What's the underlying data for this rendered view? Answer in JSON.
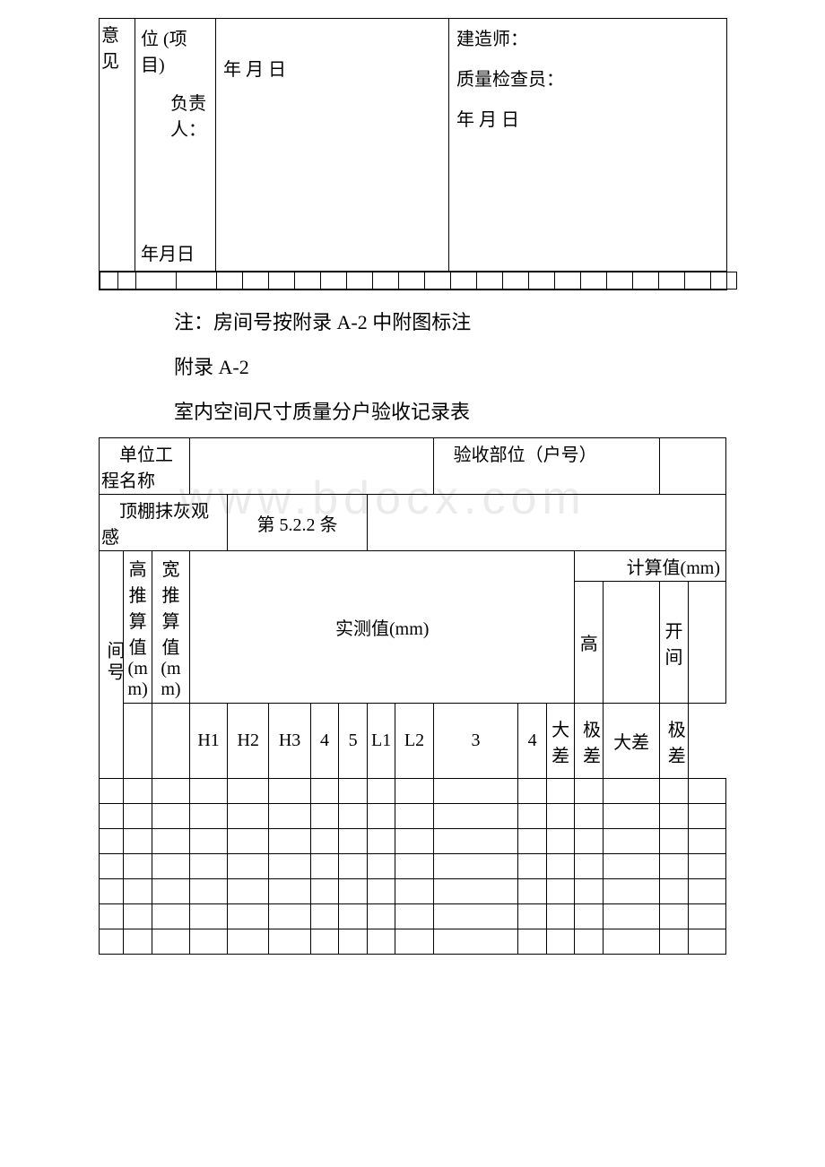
{
  "table1": {
    "col1_top": "意见",
    "col2_top": "位 (项目)",
    "col2_mid": "负责人：",
    "col2_bot": "年月日",
    "col3": "年 月 日",
    "col4a": "建造师：",
    "col4b": "质量检查员：",
    "col4c": "年 月 日"
  },
  "notes": {
    "note1": "注：房间号按附录 A-2 中附图标注",
    "note2": "附录 A-2",
    "title2": "室内空间尺寸质量分户验收记录表"
  },
  "table2": {
    "r1c1": "单位工程名称",
    "r1c3": "验收部位（户号）",
    "r2c1": "顶棚抹灰观感",
    "r2c2": "第 5.2.2 条",
    "hdr_room": "间号",
    "hdr_gao": "高推算值(mm)",
    "hdr_kuan": "宽推算值(mm)",
    "hdr_shice": "实测值(mm)",
    "hdr_jisuan": "计算值(mm)",
    "hdr_gao2": "高",
    "hdr_kaijian": "开间",
    "sub_h1": "H1",
    "sub_h2": "H2",
    "sub_h3": "H3",
    "sub_h4": "4",
    "sub_h5": "5",
    "sub_l1": "L1",
    "sub_l2": "L2",
    "sub_l3": "3",
    "sub_l4": "4",
    "sub_da": "大差",
    "sub_ji": "极差",
    "sub_da2": "大差",
    "sub_ji2": "极差"
  },
  "watermark": "www.bdocx.com",
  "empty_rows": 7
}
